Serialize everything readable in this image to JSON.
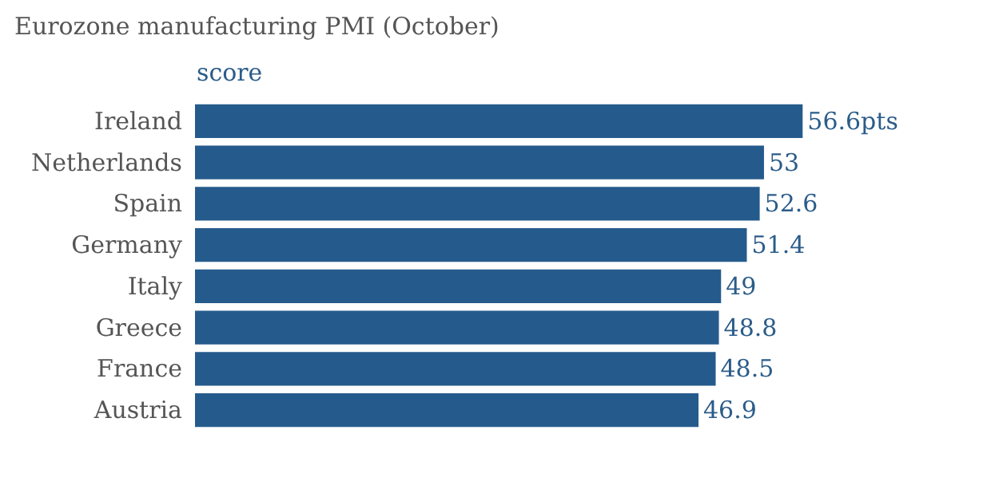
{
  "chart_data": {
    "type": "bar",
    "orientation": "horizontal",
    "title": "Eurozone manufacturing PMI (October)",
    "xlabel": "score",
    "categories": [
      "Ireland",
      "Netherlands",
      "Spain",
      "Germany",
      "Italy",
      "Greece",
      "France",
      "Austria"
    ],
    "values": [
      56.6,
      53,
      52.6,
      51.4,
      49,
      48.8,
      48.5,
      46.9
    ],
    "value_labels": [
      "56.6pts",
      "53",
      "52.6",
      "51.4",
      "49",
      "48.8",
      "48.5",
      "46.9"
    ],
    "color": "#255b8c",
    "tick_labels": "y"
  }
}
